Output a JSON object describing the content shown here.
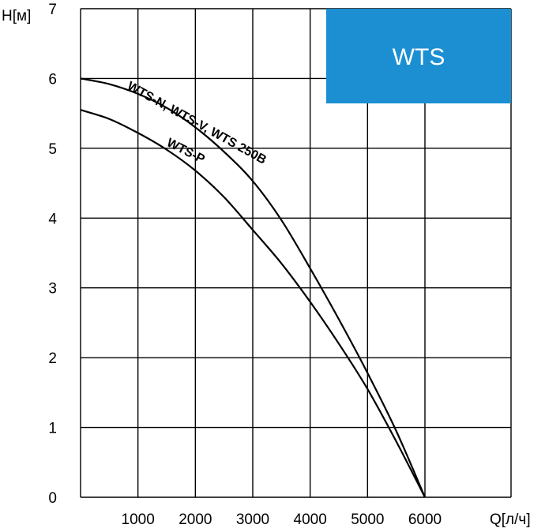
{
  "chart_data": {
    "type": "line",
    "title": "",
    "xlabel": "Q[л/ч]",
    "ylabel": "H[м]",
    "xlim": [
      0,
      7500
    ],
    "ylim": [
      0,
      7
    ],
    "xticks": [
      1000,
      2000,
      3000,
      4000,
      5000,
      6000
    ],
    "yticks": [
      0,
      1,
      2,
      3,
      4,
      5,
      6,
      7
    ],
    "grid": true,
    "badge": {
      "text": "WTS",
      "color": "#1b8fd2"
    },
    "series": [
      {
        "name": "WTS-N, WTS-V, WTS 250B",
        "x": [
          0,
          500,
          1000,
          1500,
          2000,
          2500,
          3000,
          3500,
          4000,
          4500,
          5000,
          5500,
          6000
        ],
        "y": [
          6.0,
          5.92,
          5.78,
          5.58,
          5.3,
          4.95,
          4.53,
          3.97,
          3.28,
          2.55,
          1.78,
          0.95,
          0.0
        ]
      },
      {
        "name": "WTS-P",
        "x": [
          0,
          500,
          1000,
          1500,
          2000,
          2500,
          3000,
          3500,
          4000,
          4500,
          5000,
          5500,
          6000
        ],
        "y": [
          5.55,
          5.42,
          5.22,
          4.98,
          4.68,
          4.3,
          3.83,
          3.35,
          2.8,
          2.2,
          1.55,
          0.8,
          0.0
        ]
      }
    ]
  }
}
